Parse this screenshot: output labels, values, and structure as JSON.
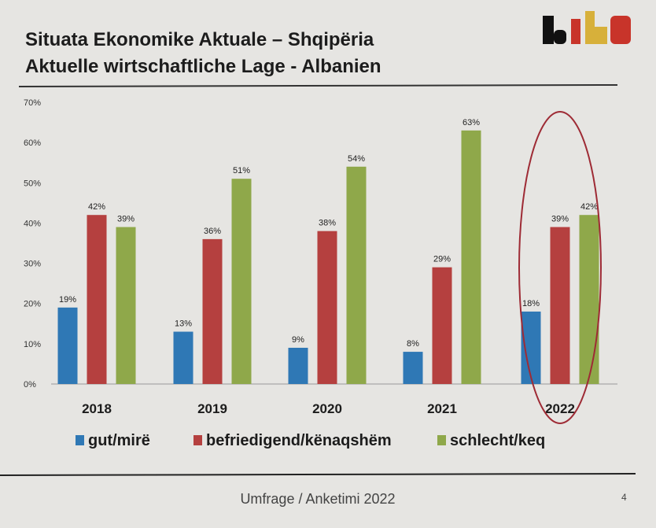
{
  "title_line1": "Situata Ekonomike Aktuale – Shqipëria",
  "title_line2": "Aktuelle wirtschaftliche Lage - Albanien",
  "logo_text": "diha",
  "footer": "Umfrage / Anketimi 2022",
  "page_number": "4",
  "chart_data": {
    "type": "bar",
    "categories": [
      "2018",
      "2019",
      "2020",
      "2021",
      "2022"
    ],
    "series": [
      {
        "name": "gut/mirë",
        "color": "#2f78b5",
        "values": [
          19,
          13,
          9,
          8,
          18
        ],
        "labels": [
          "19%",
          "13%",
          "9%",
          "8%",
          "18%"
        ]
      },
      {
        "name": "befriedigend/kënaqshëm",
        "color": "#b5403f",
        "values": [
          42,
          36,
          38,
          29,
          39
        ],
        "labels": [
          "42%",
          "36%",
          "38%",
          "29%",
          "39%"
        ]
      },
      {
        "name": "schlecht/keq",
        "color": "#8fa84a",
        "values": [
          39,
          51,
          54,
          63,
          42
        ],
        "labels": [
          "39%",
          "51%",
          "54%",
          "63%",
          "42%"
        ]
      }
    ],
    "yticks": [
      "0%",
      "10%",
      "20%",
      "30%",
      "40%",
      "50%",
      "60%",
      "70%"
    ],
    "ylim": [
      0,
      70
    ],
    "grid": false,
    "legend": "bottom",
    "highlighted_category": "2022"
  }
}
